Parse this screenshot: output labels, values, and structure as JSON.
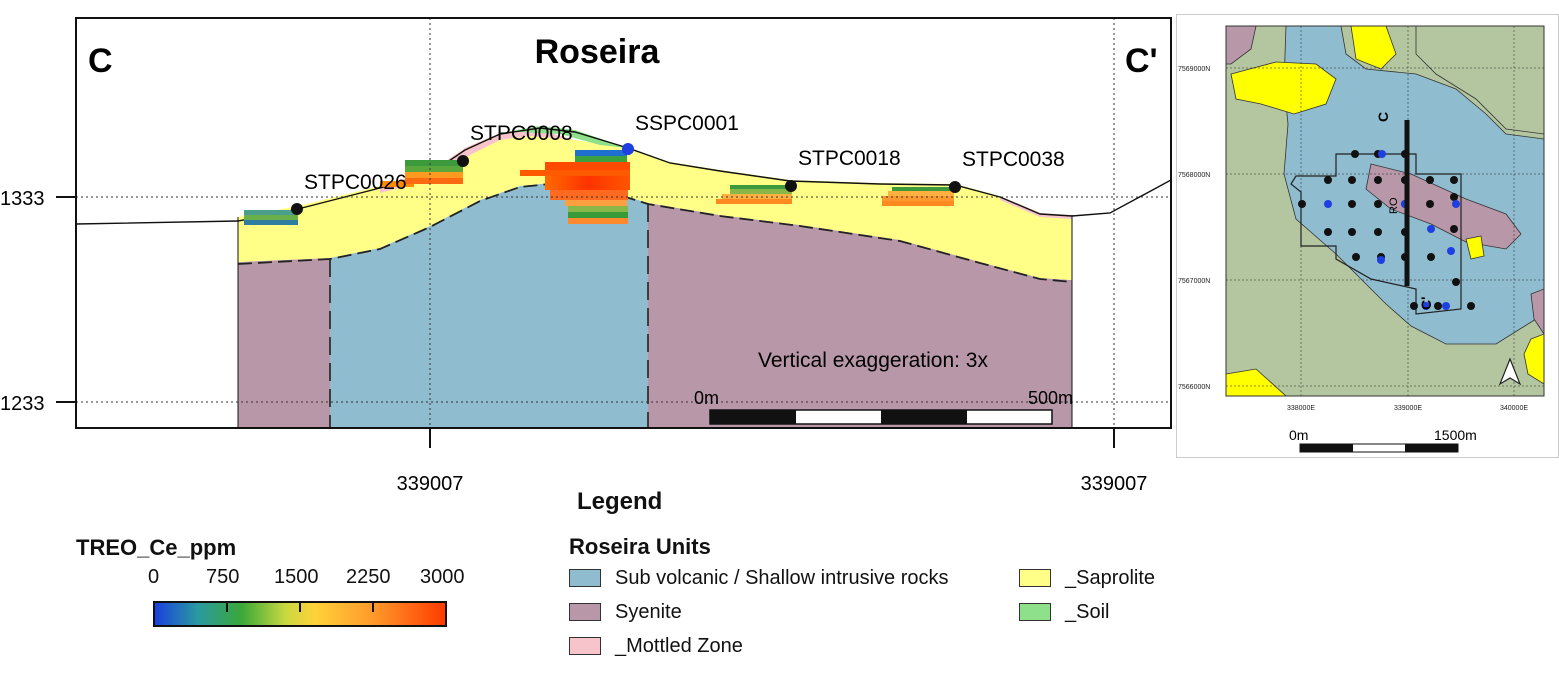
{
  "section": {
    "title": "Roseira",
    "left_label": "C",
    "right_label": "C'",
    "elev_upper": "1333",
    "elev_lower": "1233",
    "easting_left": "339007",
    "easting_right": "339007",
    "vertical_exaggeration": "Vertical exaggeration: 3x",
    "scale_start": "0m",
    "scale_end": "500m",
    "drillholes": [
      {
        "name": "STPC0026"
      },
      {
        "name": "STPC0008"
      },
      {
        "name": "SSPC0001"
      },
      {
        "name": "STPC0018"
      },
      {
        "name": "STPC0038"
      }
    ]
  },
  "inset_map": {
    "northings": [
      "7569000N",
      "7568000N",
      "7567000N",
      "7566000N"
    ],
    "eastings": [
      "338000E",
      "339000E",
      "340000E"
    ],
    "section_start_label": "C",
    "section_end_label": "C'",
    "ro_label": "RO",
    "scale_start": "0m",
    "scale_end": "1500m"
  },
  "legend": {
    "title": "Legend",
    "treo": {
      "title": "TREO_Ce_ppm",
      "ticks": [
        "0",
        "750",
        "1500",
        "2250",
        "3000"
      ]
    },
    "units_title": "Roseira Units",
    "units": [
      {
        "label": "Sub volcanic / Shallow intrusive rocks",
        "color": "#8fbccf"
      },
      {
        "label": "Syenite",
        "color": "#b898a8"
      },
      {
        "label": "_Mottled Zone",
        "color": "#f8c4cc"
      },
      {
        "label": "_Saprolite",
        "color": "#ffff88"
      },
      {
        "label": "_Soil",
        "color": "#8ee08a"
      }
    ]
  },
  "colors": {
    "subvolcanic": "#8fbccf",
    "syenite": "#b898a8",
    "mottled": "#f8c4cc",
    "saprolite": "#ffff88",
    "soil": "#8ee08a",
    "map_green": "#b4c6a0",
    "map_yellow": "#ffff00",
    "hole_blue": "#1f3fe0"
  }
}
